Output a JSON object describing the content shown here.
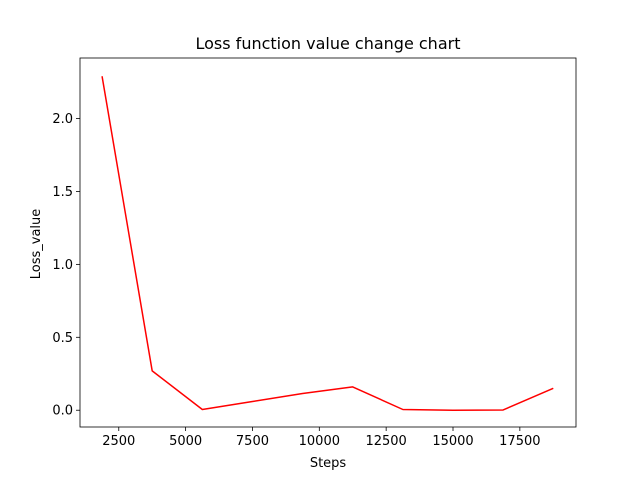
{
  "chart_data": {
    "type": "line",
    "title": "Loss function value change chart",
    "xlabel": "Steps",
    "ylabel": "Loss_value",
    "xlim": [
      1050,
      19600
    ],
    "ylim": [
      -0.115,
      2.415
    ],
    "xticks": [
      2500,
      5000,
      7500,
      10000,
      12500,
      15000,
      17500
    ],
    "yticks": [
      0.0,
      0.5,
      1.0,
      1.5,
      2.0
    ],
    "xtick_labels": [
      "2500",
      "5000",
      "7500",
      "10000",
      "12500",
      "15000",
      "17500"
    ],
    "ytick_labels": [
      "0.0",
      "0.5",
      "1.0",
      "1.5",
      "2.0"
    ],
    "grid": false,
    "series": [
      {
        "color": "#ff0000",
        "x": [
          1875,
          3750,
          5625,
          7500,
          9375,
          11250,
          13125,
          15000,
          16875,
          18750
        ],
        "y": [
          2.29,
          0.27,
          0.005,
          0.06,
          0.115,
          0.16,
          0.005,
          0.0,
          0.002,
          0.15
        ]
      }
    ]
  }
}
